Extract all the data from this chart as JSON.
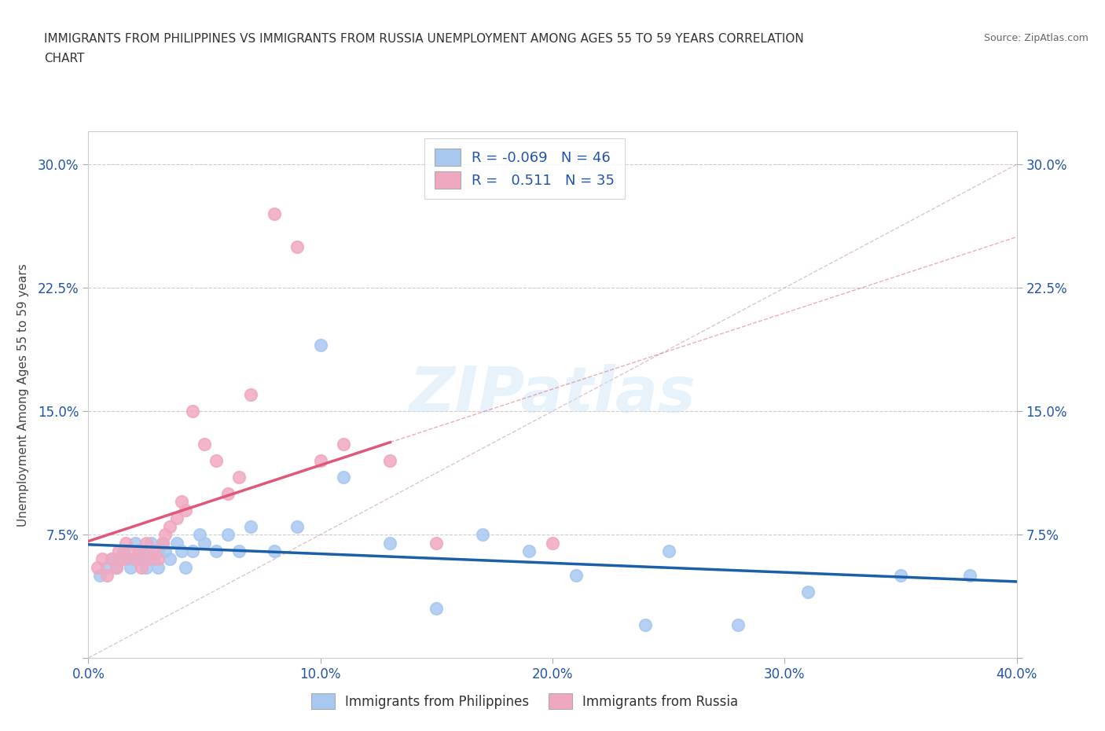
{
  "title_line1": "IMMIGRANTS FROM PHILIPPINES VS IMMIGRANTS FROM RUSSIA UNEMPLOYMENT AMONG AGES 55 TO 59 YEARS CORRELATION",
  "title_line2": "CHART",
  "source": "Source: ZipAtlas.com",
  "ylabel": "Unemployment Among Ages 55 to 59 years",
  "xlim": [
    0.0,
    0.4
  ],
  "ylim": [
    0.0,
    0.32
  ],
  "xticks": [
    0.0,
    0.1,
    0.2,
    0.3,
    0.4
  ],
  "yticks": [
    0.0,
    0.075,
    0.15,
    0.225,
    0.3
  ],
  "xticklabels": [
    "0.0%",
    "10.0%",
    "20.0%",
    "30.0%",
    "40.0%"
  ],
  "yticklabels_left": [
    "",
    "7.5%",
    "15.0%",
    "22.5%",
    "30.0%"
  ],
  "yticklabels_right": [
    "",
    "7.5%",
    "15.0%",
    "22.5%",
    "30.0%"
  ],
  "philippines_color": "#a8c8f0",
  "russia_color": "#f0a8c0",
  "philippines_line_color": "#1a5fa8",
  "russia_line_color": "#e05878",
  "diag_line_color": "#d0b0b0",
  "legend_R_philippines": "-0.069",
  "legend_N_philippines": "46",
  "legend_R_russia": "0.511",
  "legend_N_russia": "35",
  "watermark": "ZIPatlas",
  "philippines_x": [
    0.005,
    0.008,
    0.01,
    0.012,
    0.013,
    0.015,
    0.017,
    0.018,
    0.02,
    0.02,
    0.022,
    0.023,
    0.025,
    0.025,
    0.027,
    0.028,
    0.03,
    0.03,
    0.032,
    0.033,
    0.035,
    0.038,
    0.04,
    0.042,
    0.045,
    0.048,
    0.05,
    0.055,
    0.06,
    0.065,
    0.07,
    0.08,
    0.09,
    0.1,
    0.11,
    0.13,
    0.15,
    0.17,
    0.19,
    0.21,
    0.24,
    0.25,
    0.28,
    0.31,
    0.35,
    0.38
  ],
  "philippines_y": [
    0.05,
    0.055,
    0.06,
    0.055,
    0.06,
    0.065,
    0.06,
    0.055,
    0.07,
    0.06,
    0.065,
    0.06,
    0.055,
    0.065,
    0.07,
    0.06,
    0.065,
    0.055,
    0.07,
    0.065,
    0.06,
    0.07,
    0.065,
    0.055,
    0.065,
    0.075,
    0.07,
    0.065,
    0.075,
    0.065,
    0.08,
    0.065,
    0.08,
    0.19,
    0.11,
    0.07,
    0.03,
    0.075,
    0.065,
    0.05,
    0.02,
    0.065,
    0.02,
    0.04,
    0.05,
    0.05
  ],
  "russia_x": [
    0.004,
    0.006,
    0.008,
    0.01,
    0.012,
    0.013,
    0.015,
    0.016,
    0.018,
    0.02,
    0.022,
    0.023,
    0.025,
    0.026,
    0.028,
    0.03,
    0.032,
    0.033,
    0.035,
    0.038,
    0.04,
    0.042,
    0.045,
    0.05,
    0.055,
    0.06,
    0.065,
    0.07,
    0.08,
    0.09,
    0.1,
    0.11,
    0.13,
    0.15,
    0.2
  ],
  "russia_y": [
    0.055,
    0.06,
    0.05,
    0.06,
    0.055,
    0.065,
    0.06,
    0.07,
    0.065,
    0.06,
    0.065,
    0.055,
    0.07,
    0.06,
    0.065,
    0.06,
    0.07,
    0.075,
    0.08,
    0.085,
    0.095,
    0.09,
    0.15,
    0.13,
    0.12,
    0.1,
    0.11,
    0.16,
    0.27,
    0.25,
    0.12,
    0.13,
    0.12,
    0.07,
    0.07
  ]
}
